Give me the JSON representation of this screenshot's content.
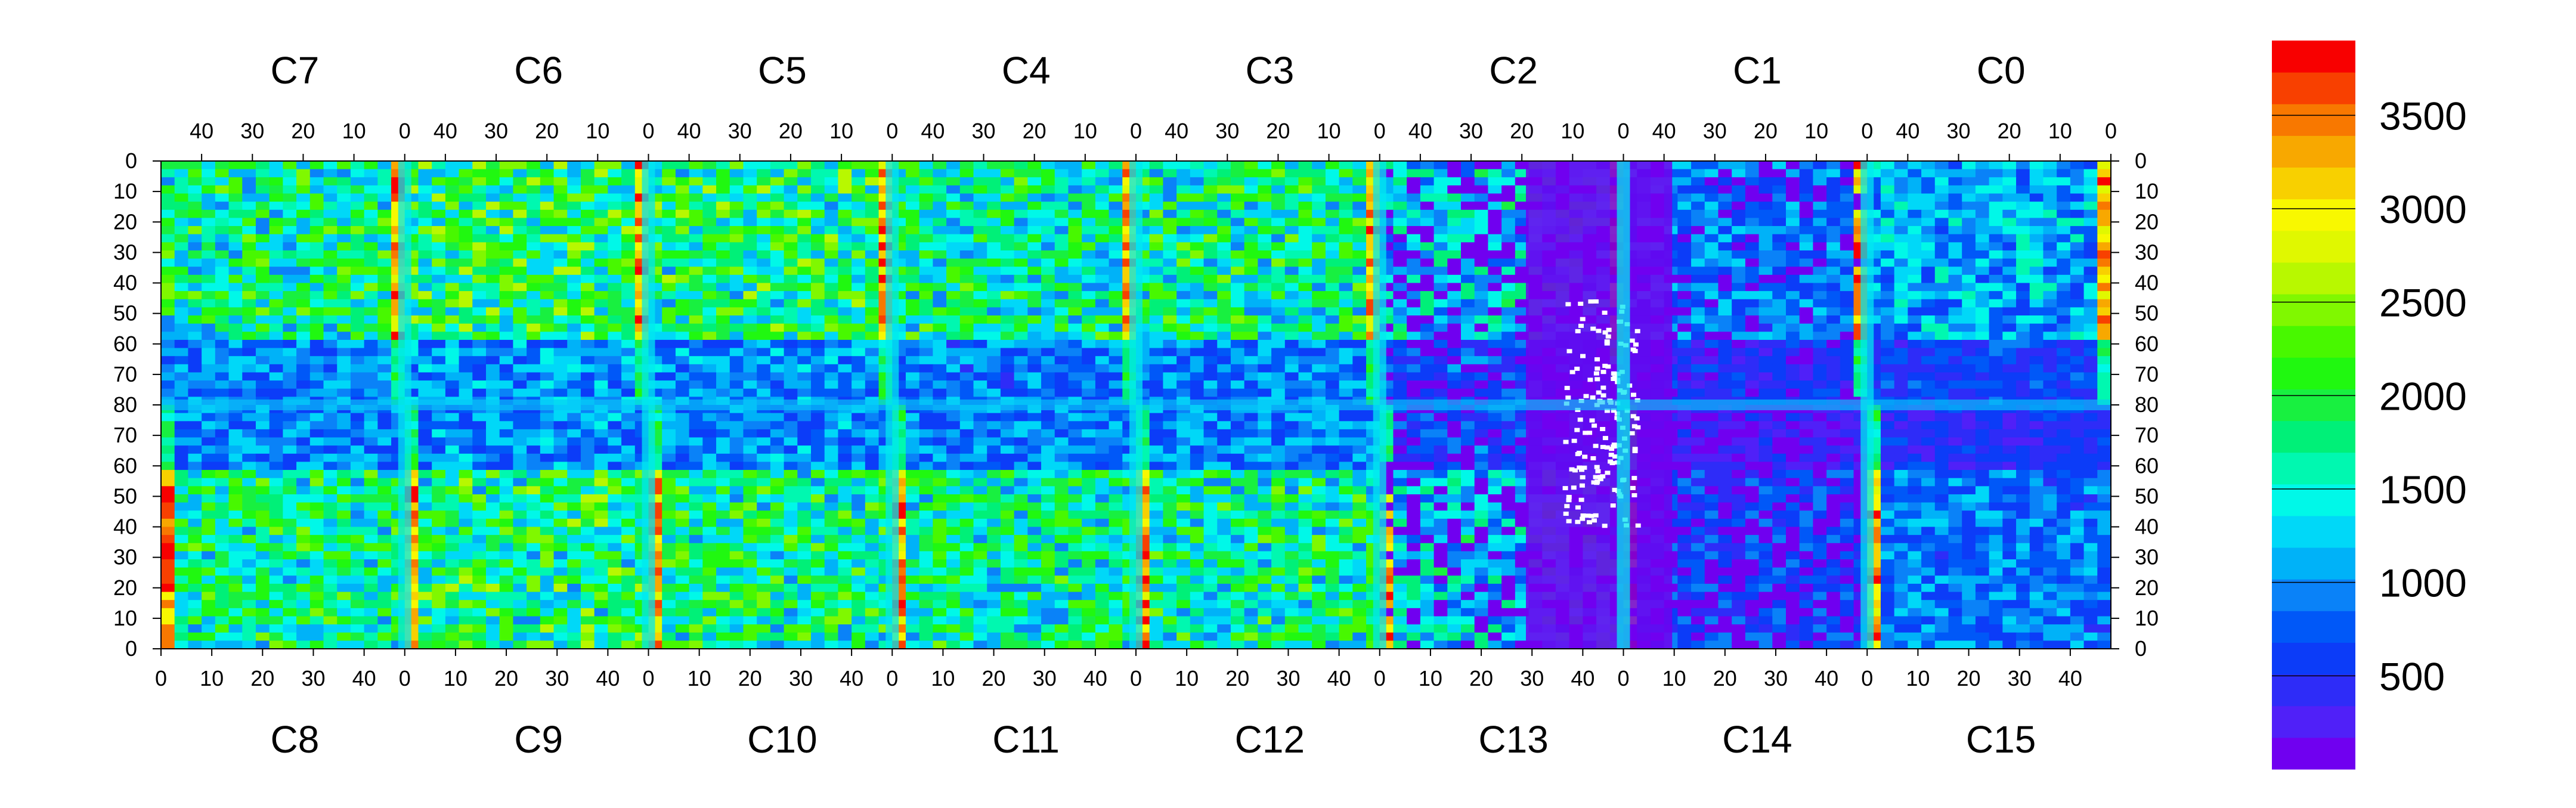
{
  "chart_data": {
    "type": "heatmap",
    "title": "",
    "xlabel": "",
    "ylabel": "",
    "grid": false,
    "top_row_labels": [
      "C7",
      "C6",
      "C5",
      "C4",
      "C3",
      "C2",
      "C1",
      "C0"
    ],
    "bottom_row_labels": [
      "C8",
      "C9",
      "C10",
      "C11",
      "C12",
      "C13",
      "C14",
      "C15"
    ],
    "top_axis_ticks": [
      "40",
      "30",
      "20",
      "10",
      "0"
    ],
    "bottom_axis_ticks": [
      "0",
      "10",
      "20",
      "30",
      "40"
    ],
    "left_axis_ticks": [
      "0",
      "10",
      "20",
      "30",
      "40",
      "50",
      "60",
      "70",
      "80",
      "70",
      "60",
      "50",
      "40",
      "30",
      "20",
      "10",
      "0"
    ],
    "right_axis_ticks": [
      "0",
      "10",
      "20",
      "30",
      "40",
      "50",
      "60",
      "70",
      "80",
      "70",
      "60",
      "50",
      "40",
      "30",
      "20",
      "10",
      "0"
    ],
    "chip_columns": 48,
    "chip_half_rows": 80,
    "colorbar": {
      "min": 0,
      "max": 3900,
      "ticks": [
        500,
        1000,
        1500,
        2000,
        2500,
        3000,
        3500
      ],
      "tick_labels": [
        "500",
        "1000",
        "1500",
        "2000",
        "2500",
        "3000",
        "3500"
      ],
      "colors": [
        "#7000f0",
        "#5020f8",
        "#2e2cf8",
        "#0c3cf8",
        "#0058f8",
        "#0a82f8",
        "#00b2f8",
        "#00d8f8",
        "#00f8e8",
        "#00f8b0",
        "#00f078",
        "#18f040",
        "#20f810",
        "#48f800",
        "#80f800",
        "#b8f800",
        "#e0f800",
        "#f8f800",
        "#f8d000",
        "#f8a800",
        "#f87800",
        "#f84000",
        "#f80000"
      ]
    },
    "chips": [
      {
        "label": "C7",
        "position": "top",
        "level": 1700,
        "dead_fraction": 0.0
      },
      {
        "label": "C6",
        "position": "top",
        "level": 1850,
        "dead_fraction": 0.0
      },
      {
        "label": "C5",
        "position": "top",
        "level": 1800,
        "dead_fraction": 0.0
      },
      {
        "label": "C4",
        "position": "top",
        "level": 1650,
        "dead_fraction": 0.0
      },
      {
        "label": "C3",
        "position": "top",
        "level": 1700,
        "dead_fraction": 0.0
      },
      {
        "label": "C2",
        "position": "top",
        "level": 1300,
        "dead_fraction": 0.3
      },
      {
        "label": "C1",
        "position": "top",
        "level": 900,
        "dead_fraction": 0.2
      },
      {
        "label": "C0",
        "position": "top",
        "level": 1100,
        "dead_fraction": 0.0
      },
      {
        "label": "C8",
        "position": "bottom",
        "level": 1700,
        "dead_fraction": 0.0
      },
      {
        "label": "C9",
        "position": "bottom",
        "level": 1800,
        "dead_fraction": 0.0
      },
      {
        "label": "C10",
        "position": "bottom",
        "level": 1750,
        "dead_fraction": 0.0
      },
      {
        "label": "C11",
        "position": "bottom",
        "level": 1650,
        "dead_fraction": 0.0
      },
      {
        "label": "C12",
        "position": "bottom",
        "level": 1700,
        "dead_fraction": 0.0
      },
      {
        "label": "C13",
        "position": "bottom",
        "level": 1300,
        "dead_fraction": 0.3
      },
      {
        "label": "C14",
        "position": "bottom",
        "level": 700,
        "dead_fraction": 0.3
      },
      {
        "label": "C15",
        "position": "bottom",
        "level": 900,
        "dead_fraction": 0.0
      }
    ]
  }
}
